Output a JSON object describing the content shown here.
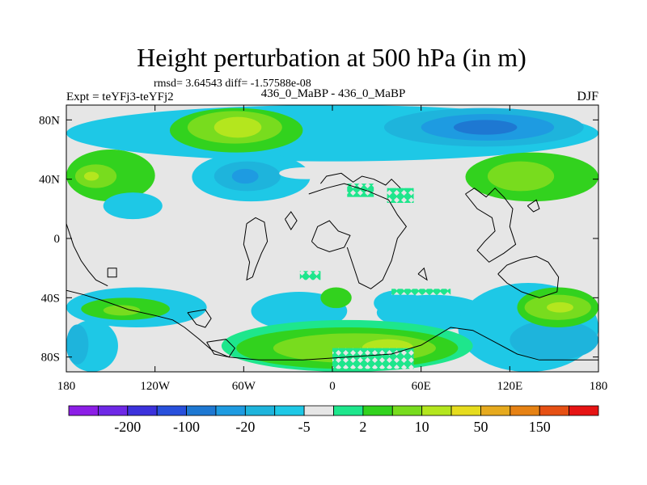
{
  "chart_data": {
    "type": "heatmap",
    "title": "Height perturbation at 500 hPa (in m)",
    "subtitle": "rmsd= 3.64543 diff= -1.57588e-08",
    "left_label": "Expt = teYFj3-teYFj2",
    "center_label": "436_0_MaBP - 436_0_MaBP",
    "right_label": "DJF",
    "x_ticks": [
      {
        "value": -180,
        "label": "180"
      },
      {
        "value": -120,
        "label": "120W"
      },
      {
        "value": -60,
        "label": "60W"
      },
      {
        "value": 0,
        "label": "0"
      },
      {
        "value": 60,
        "label": "60E"
      },
      {
        "value": 120,
        "label": "120E"
      },
      {
        "value": 180,
        "label": "180"
      }
    ],
    "y_ticks": [
      {
        "value": 80,
        "label": "80N"
      },
      {
        "value": 40,
        "label": "40N"
      },
      {
        "value": 0,
        "label": "0"
      },
      {
        "value": -40,
        "label": "40S"
      },
      {
        "value": -80,
        "label": "80S"
      }
    ],
    "xlim": [
      -180,
      180
    ],
    "ylim": [
      -90,
      90
    ],
    "colorbar": {
      "colors": [
        "#8c1ee6",
        "#6e28e6",
        "#3c32dc",
        "#2850dc",
        "#1e78d2",
        "#1e9be1",
        "#1eb4dc",
        "#1ec8e6",
        "#e6e6e6",
        "#1ee68c",
        "#32d21e",
        "#78dc1e",
        "#b4e61e",
        "#e6dc1e",
        "#e6aa1e",
        "#e68214",
        "#e65014",
        "#e61414"
      ],
      "labels": [
        {
          "after_index": 1,
          "text": "-200"
        },
        {
          "after_index": 3,
          "text": "-100"
        },
        {
          "after_index": 5,
          "text": "-20"
        },
        {
          "after_index": 7,
          "text": "-5"
        },
        {
          "after_index": 9,
          "text": "2"
        },
        {
          "after_index": 11,
          "text": "10"
        },
        {
          "after_index": 13,
          "text": "50"
        },
        {
          "after_index": 15,
          "text": "150"
        }
      ]
    },
    "regions": [
      {
        "level": 7,
        "lon": [
          -180,
          180
        ],
        "lat": [
          52,
          90
        ]
      },
      {
        "level": 10,
        "lon": [
          -110,
          -20
        ],
        "lat": [
          58,
          88
        ]
      },
      {
        "level": 11,
        "lon": [
          -98,
          -34
        ],
        "lat": [
          64,
          86
        ]
      },
      {
        "level": 12,
        "lon": [
          -80,
          -48
        ],
        "lat": [
          68,
          82
        ]
      },
      {
        "level": 6,
        "lon": [
          35,
          170
        ],
        "lat": [
          62,
          88
        ]
      },
      {
        "level": 5,
        "lon": [
          60,
          150
        ],
        "lat": [
          66,
          84
        ]
      },
      {
        "level": 4,
        "lon": [
          82,
          125
        ],
        "lat": [
          70,
          80
        ]
      },
      {
        "level": 10,
        "lon": [
          -180,
          -120
        ],
        "lat": [
          25,
          60
        ]
      },
      {
        "level": 11,
        "lon": [
          -174,
          -146
        ],
        "lat": [
          34,
          50
        ]
      },
      {
        "level": 12,
        "lon": [
          -168,
          -158
        ],
        "lat": [
          39,
          45
        ]
      },
      {
        "level": 7,
        "lon": [
          -155,
          -115
        ],
        "lat": [
          13,
          31
        ]
      },
      {
        "level": 7,
        "lon": [
          -95,
          -15
        ],
        "lat": [
          25,
          58
        ]
      },
      {
        "level": 6,
        "lon": [
          -80,
          -35
        ],
        "lat": [
          32,
          52
        ]
      },
      {
        "level": 5,
        "lon": [
          -68,
          -50
        ],
        "lat": [
          37,
          47
        ]
      },
      {
        "level": 10,
        "lon": [
          90,
          180
        ],
        "lat": [
          25,
          58
        ]
      },
      {
        "level": 11,
        "lon": [
          105,
          150
        ],
        "lat": [
          32,
          52
        ]
      },
      {
        "level": 7,
        "lon": [
          -180,
          -85
        ],
        "lat": [
          -60,
          -33
        ]
      },
      {
        "level": 10,
        "lon": [
          -170,
          -110
        ],
        "lat": [
          -55,
          -40
        ]
      },
      {
        "level": 11,
        "lon": [
          -155,
          -130
        ],
        "lat": [
          -52,
          -45
        ]
      },
      {
        "level": 7,
        "lon": [
          -180,
          -145
        ],
        "lat": [
          -90,
          -55
        ]
      },
      {
        "level": 6,
        "lon": [
          -180,
          -165
        ],
        "lat": [
          -85,
          -58
        ]
      },
      {
        "level": 7,
        "lon": [
          -55,
          10
        ],
        "lat": [
          -62,
          -36
        ]
      },
      {
        "level": 7,
        "lon": [
          30,
          105
        ],
        "lat": [
          -62,
          -38
        ]
      },
      {
        "level": 7,
        "lon": [
          85,
          180
        ],
        "lat": [
          -90,
          -30
        ]
      },
      {
        "level": 6,
        "lon": [
          120,
          180
        ],
        "lat": [
          -82,
          -55
        ]
      },
      {
        "level": 10,
        "lon": [
          125,
          180
        ],
        "lat": [
          -60,
          -33
        ]
      },
      {
        "level": 11,
        "lon": [
          130,
          175
        ],
        "lat": [
          -55,
          -38
        ]
      },
      {
        "level": 12,
        "lon": [
          145,
          163
        ],
        "lat": [
          -50,
          -43
        ]
      },
      {
        "level": 9,
        "lon": [
          -75,
          95
        ],
        "lat": [
          -90,
          -55
        ]
      },
      {
        "level": 10,
        "lon": [
          -65,
          85
        ],
        "lat": [
          -88,
          -60
        ]
      },
      {
        "level": 11,
        "lon": [
          -40,
          70
        ],
        "lat": [
          -84,
          -64
        ]
      },
      {
        "level": 12,
        "lon": [
          20,
          55
        ],
        "lat": [
          -80,
          -68
        ]
      },
      {
        "level": 10,
        "lon": [
          -8,
          13
        ],
        "lat": [
          -47,
          -33
        ]
      },
      {
        "level": 7,
        "lon": [
          28,
          60
        ],
        "lat": [
          -52,
          -35
        ]
      }
    ],
    "coastlines": [
      [
        [
          -180,
          -35
        ],
        [
          -168,
          -38
        ],
        [
          -155,
          -42
        ],
        [
          -138,
          -48
        ],
        [
          -120,
          -52
        ],
        [
          -108,
          -55
        ],
        [
          -100,
          -60
        ],
        [
          -90,
          -68
        ],
        [
          -82,
          -75
        ],
        [
          -70,
          -80
        ],
        [
          -50,
          -82
        ],
        [
          -20,
          -82
        ],
        [
          10,
          -80
        ],
        [
          40,
          -78
        ],
        [
          60,
          -72
        ],
        [
          80,
          -60
        ],
        [
          95,
          -62
        ],
        [
          110,
          -70
        ],
        [
          125,
          -78
        ],
        [
          140,
          -82
        ],
        [
          160,
          -82
        ],
        [
          180,
          -82
        ]
      ],
      [
        [
          -180,
          10
        ],
        [
          -175,
          -5
        ],
        [
          -170,
          -15
        ],
        [
          -165,
          -22
        ],
        [
          -160,
          -28
        ],
        [
          -152,
          -32
        ]
      ],
      [
        [
          -58,
          10
        ],
        [
          -52,
          14
        ],
        [
          -46,
          11
        ],
        [
          -44,
          -2
        ],
        [
          -48,
          -10
        ],
        [
          -52,
          -20
        ],
        [
          -54,
          -26
        ],
        [
          -58,
          -28
        ],
        [
          -56,
          -16
        ],
        [
          -60,
          -4
        ],
        [
          -58,
          10
        ]
      ],
      [
        [
          -32,
          13
        ],
        [
          -28,
          18
        ],
        [
          -24,
          12
        ],
        [
          -28,
          6
        ],
        [
          -32,
          13
        ]
      ],
      [
        [
          -14,
          -2
        ],
        [
          -10,
          8
        ],
        [
          -2,
          12
        ],
        [
          4,
          5
        ],
        [
          12,
          2
        ],
        [
          8,
          -6
        ],
        [
          -2,
          -9
        ],
        [
          -10,
          -6
        ],
        [
          -14,
          -2
        ]
      ],
      [
        [
          -16,
          30
        ],
        [
          -4,
          34
        ],
        [
          8,
          37
        ],
        [
          24,
          32
        ],
        [
          38,
          26
        ],
        [
          44,
          16
        ],
        [
          50,
          8
        ],
        [
          44,
          0
        ],
        [
          40,
          -15
        ],
        [
          34,
          -28
        ],
        [
          26,
          -34
        ],
        [
          18,
          -30
        ],
        [
          14,
          -18
        ],
        [
          10,
          -6
        ]
      ],
      [
        [
          -8,
          37
        ],
        [
          -4,
          42
        ],
        [
          6,
          44
        ],
        [
          14,
          38
        ],
        [
          20,
          42
        ],
        [
          28,
          40
        ],
        [
          36,
          36
        ],
        [
          40,
          40
        ],
        [
          46,
          34
        ]
      ],
      [
        [
          90,
          30
        ],
        [
          98,
          20
        ],
        [
          108,
          14
        ],
        [
          110,
          5
        ],
        [
          103,
          -2
        ],
        [
          98,
          -8
        ],
        [
          106,
          -16
        ],
        [
          116,
          -10
        ],
        [
          124,
          -4
        ],
        [
          120,
          8
        ],
        [
          122,
          20
        ],
        [
          116,
          28
        ],
        [
          110,
          34
        ],
        [
          104,
          28
        ],
        [
          96,
          34
        ],
        [
          90,
          30
        ]
      ],
      [
        [
          112,
          -24
        ],
        [
          118,
          -30
        ],
        [
          128,
          -36
        ],
        [
          140,
          -40
        ],
        [
          152,
          -36
        ],
        [
          153,
          -26
        ],
        [
          146,
          -16
        ],
        [
          138,
          -12
        ],
        [
          128,
          -14
        ],
        [
          118,
          -18
        ],
        [
          112,
          -24
        ]
      ],
      [
        [
          132,
          22
        ],
        [
          136,
          18
        ],
        [
          140,
          20
        ],
        [
          138,
          26
        ],
        [
          132,
          22
        ]
      ],
      [
        [
          -98,
          -50
        ],
        [
          -92,
          -58
        ],
        [
          -86,
          -60
        ],
        [
          -82,
          -54
        ],
        [
          -86,
          -48
        ],
        [
          -98,
          -50
        ]
      ],
      [
        [
          -85,
          -70
        ],
        [
          -80,
          -78
        ],
        [
          -70,
          -80
        ],
        [
          -66,
          -74
        ],
        [
          -72,
          -68
        ],
        [
          -85,
          -70
        ]
      ],
      [
        [
          -152,
          -20
        ],
        [
          -146,
          -20
        ],
        [
          -146,
          -26
        ],
        [
          -152,
          -26
        ],
        [
          -152,
          -20
        ]
      ],
      [
        [
          58,
          -24
        ],
        [
          62,
          -20
        ],
        [
          64,
          -28
        ],
        [
          58,
          -24
        ]
      ]
    ],
    "missing": [
      {
        "lon": [
          -36,
          0
        ],
        "lat": [
          40,
          48
        ]
      },
      {
        "lon": [
          23,
          48
        ],
        "lat": [
          32,
          38
        ]
      },
      {
        "lon": [
          -5,
          18
        ],
        "lat": [
          30,
          38
        ]
      }
    ],
    "diamond_patches": [
      {
        "lon": [
          0,
          55
        ],
        "lat": [
          -88,
          -74
        ]
      },
      {
        "lon": [
          10,
          28
        ],
        "lat": [
          28,
          37
        ]
      },
      {
        "lon": [
          37,
          55
        ],
        "lat": [
          24,
          34
        ]
      },
      {
        "lon": [
          -22,
          -8
        ],
        "lat": [
          -22,
          -28
        ]
      },
      {
        "lon": [
          40,
          80
        ],
        "lat": [
          -34,
          -38
        ]
      }
    ]
  }
}
